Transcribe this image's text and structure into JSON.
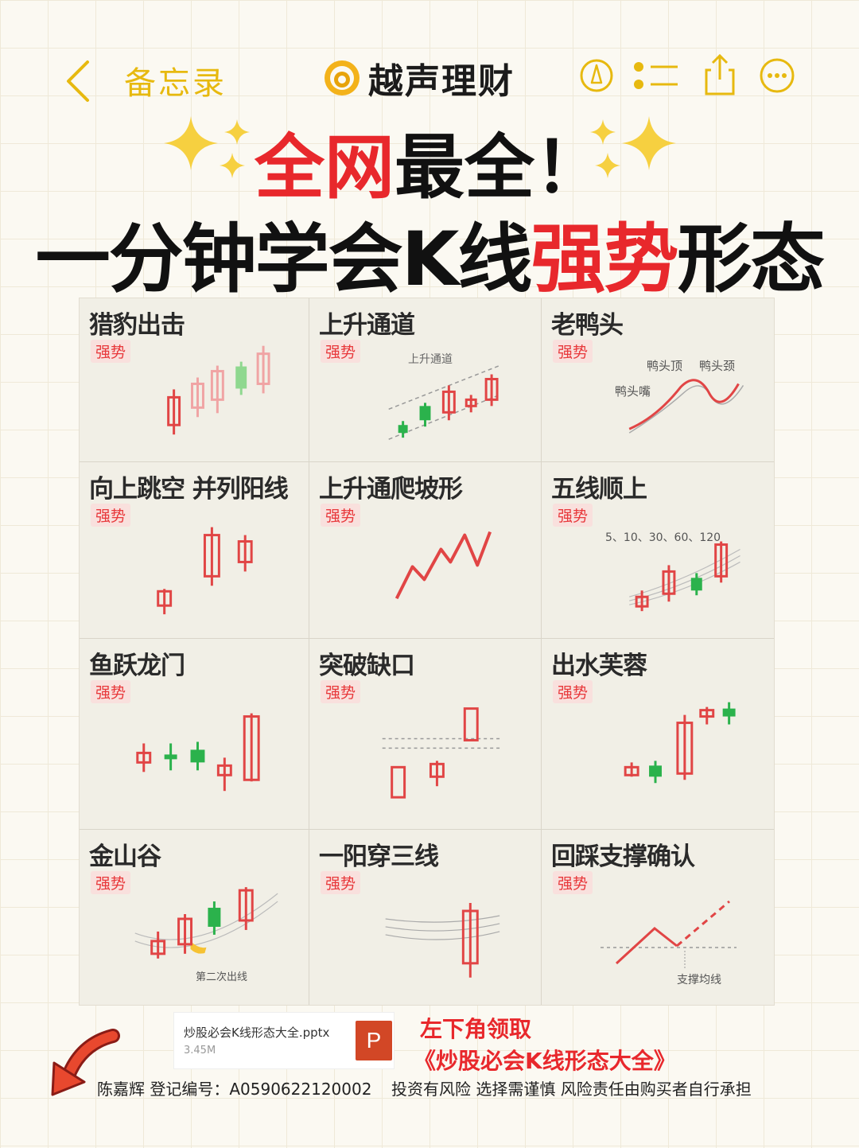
{
  "nav": {
    "back_label": "备忘录"
  },
  "brand": {
    "name": "越声理财"
  },
  "headline": {
    "line1_red": "全网",
    "line1_black": "最全！",
    "line2_a": "一分钟学会K线",
    "line2_red": "强势",
    "line2_b": "形态"
  },
  "patterns": [
    {
      "title": "猎豹出击",
      "tag": "强势"
    },
    {
      "title": "上升通道",
      "tag": "强势",
      "note": "上升通道"
    },
    {
      "title": "老鸭头",
      "tag": "强势",
      "notes": [
        "鸭头顶",
        "鸭头颈",
        "鸭头嘴"
      ]
    },
    {
      "title": "向上跳空 并列阳线",
      "tag": "强势"
    },
    {
      "title": "上升通爬坡形",
      "tag": "强势"
    },
    {
      "title": "五线顺上",
      "tag": "强势",
      "note": "5、10、30、60、120"
    },
    {
      "title": "鱼跃龙门",
      "tag": "强势"
    },
    {
      "title": "突破缺口",
      "tag": "强势"
    },
    {
      "title": "出水芙蓉",
      "tag": "强势"
    },
    {
      "title": "金山谷",
      "tag": "强势",
      "note": "第二次出线"
    },
    {
      "title": "一阳穿三线",
      "tag": "强势"
    },
    {
      "title": "回踩支撑确认",
      "tag": "强势",
      "note": "支撑均线"
    }
  ],
  "file": {
    "name": "炒股必会K线形态大全.pptx",
    "size": "3.45M",
    "icon_letter": "P"
  },
  "promo": {
    "line1": "左下角领取",
    "line2": "《炒股必会K线形态大全》"
  },
  "footer": {
    "left": "陈嘉辉 登记编号：A0590622120002",
    "right": "投资有风险 选择需谨慎 风险责任由购买者自行承担"
  },
  "colors": {
    "accent_yellow": "#e7b90f",
    "red": "#e8282c",
    "green": "#2bb24c"
  }
}
